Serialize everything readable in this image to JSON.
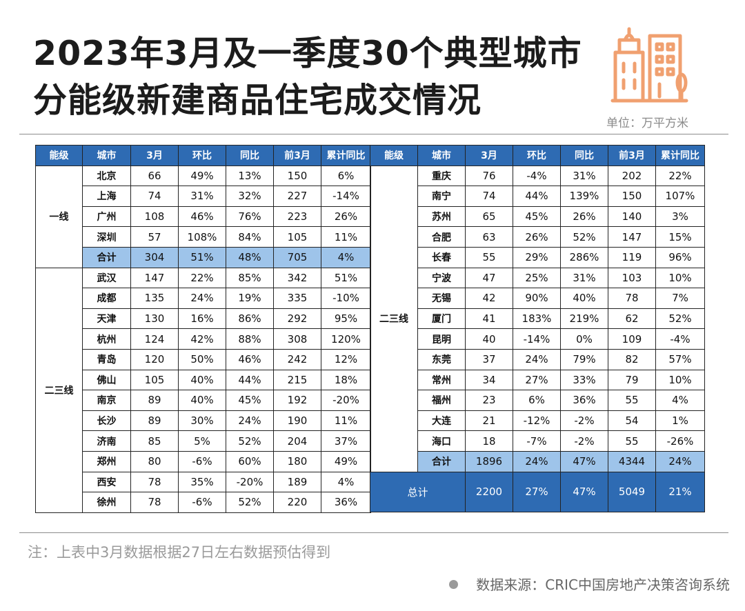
{
  "title": "2023年3月及一季度30个典型城市分能级新建商品住宅成交情况",
  "unit": "单位：万平方米",
  "headers": [
    "能级",
    "城市",
    "3月",
    "环比",
    "同比",
    "前3月",
    "累计同比"
  ],
  "left_table": {
    "tier_first": "一线",
    "tier_second": "二三线",
    "first_tier_rows": [
      {
        "city": "北京",
        "march": "66",
        "mom": "49%",
        "yoy": "13%",
        "q1": "150",
        "q1_yoy": "6%"
      },
      {
        "city": "上海",
        "march": "74",
        "mom": "31%",
        "yoy": "32%",
        "q1": "227",
        "q1_yoy": "-14%"
      },
      {
        "city": "广州",
        "march": "108",
        "mom": "46%",
        "yoy": "76%",
        "q1": "223",
        "q1_yoy": "26%"
      },
      {
        "city": "深圳",
        "march": "57",
        "mom": "108%",
        "yoy": "84%",
        "q1": "105",
        "q1_yoy": "11%"
      }
    ],
    "first_tier_sum": {
      "city": "合计",
      "march": "304",
      "mom": "51%",
      "yoy": "48%",
      "q1": "705",
      "q1_yoy": "4%"
    },
    "second_tier_rows": [
      {
        "city": "武汉",
        "march": "147",
        "mom": "22%",
        "yoy": "85%",
        "q1": "342",
        "q1_yoy": "51%"
      },
      {
        "city": "成都",
        "march": "135",
        "mom": "24%",
        "yoy": "19%",
        "q1": "335",
        "q1_yoy": "-10%"
      },
      {
        "city": "天津",
        "march": "130",
        "mom": "16%",
        "yoy": "86%",
        "q1": "292",
        "q1_yoy": "95%"
      },
      {
        "city": "杭州",
        "march": "124",
        "mom": "42%",
        "yoy": "88%",
        "q1": "308",
        "q1_yoy": "120%"
      },
      {
        "city": "青岛",
        "march": "120",
        "mom": "50%",
        "yoy": "46%",
        "q1": "242",
        "q1_yoy": "12%"
      },
      {
        "city": "佛山",
        "march": "105",
        "mom": "40%",
        "yoy": "44%",
        "q1": "215",
        "q1_yoy": "18%"
      },
      {
        "city": "南京",
        "march": "89",
        "mom": "40%",
        "yoy": "45%",
        "q1": "192",
        "q1_yoy": "-20%"
      },
      {
        "city": "长沙",
        "march": "89",
        "mom": "30%",
        "yoy": "24%",
        "q1": "190",
        "q1_yoy": "11%"
      },
      {
        "city": "济南",
        "march": "85",
        "mom": "5%",
        "yoy": "52%",
        "q1": "204",
        "q1_yoy": "37%"
      },
      {
        "city": "郑州",
        "march": "80",
        "mom": "-6%",
        "yoy": "60%",
        "q1": "180",
        "q1_yoy": "49%"
      },
      {
        "city": "西安",
        "march": "78",
        "mom": "35%",
        "yoy": "-20%",
        "q1": "189",
        "q1_yoy": "4%"
      },
      {
        "city": "徐州",
        "march": "78",
        "mom": "-6%",
        "yoy": "52%",
        "q1": "220",
        "q1_yoy": "36%"
      }
    ]
  },
  "right_table": {
    "tier": "二三线",
    "rows": [
      {
        "city": "重庆",
        "march": "76",
        "mom": "-4%",
        "yoy": "31%",
        "q1": "202",
        "q1_yoy": "22%"
      },
      {
        "city": "南宁",
        "march": "74",
        "mom": "44%",
        "yoy": "139%",
        "q1": "150",
        "q1_yoy": "107%"
      },
      {
        "city": "苏州",
        "march": "65",
        "mom": "45%",
        "yoy": "26%",
        "q1": "140",
        "q1_yoy": "3%"
      },
      {
        "city": "合肥",
        "march": "63",
        "mom": "26%",
        "yoy": "52%",
        "q1": "147",
        "q1_yoy": "15%"
      },
      {
        "city": "长春",
        "march": "55",
        "mom": "29%",
        "yoy": "286%",
        "q1": "119",
        "q1_yoy": "96%"
      },
      {
        "city": "宁波",
        "march": "47",
        "mom": "25%",
        "yoy": "31%",
        "q1": "103",
        "q1_yoy": "10%"
      },
      {
        "city": "无锡",
        "march": "42",
        "mom": "90%",
        "yoy": "40%",
        "q1": "78",
        "q1_yoy": "7%"
      },
      {
        "city": "厦门",
        "march": "41",
        "mom": "183%",
        "yoy": "219%",
        "q1": "62",
        "q1_yoy": "52%"
      },
      {
        "city": "昆明",
        "march": "40",
        "mom": "-14%",
        "yoy": "0%",
        "q1": "109",
        "q1_yoy": "-4%"
      },
      {
        "city": "东莞",
        "march": "37",
        "mom": "24%",
        "yoy": "79%",
        "q1": "82",
        "q1_yoy": "57%"
      },
      {
        "city": "常州",
        "march": "34",
        "mom": "27%",
        "yoy": "33%",
        "q1": "79",
        "q1_yoy": "10%"
      },
      {
        "city": "福州",
        "march": "23",
        "mom": "6%",
        "yoy": "36%",
        "q1": "55",
        "q1_yoy": "4%"
      },
      {
        "city": "大连",
        "march": "21",
        "mom": "-12%",
        "yoy": "-2%",
        "q1": "54",
        "q1_yoy": "1%"
      },
      {
        "city": "海口",
        "march": "18",
        "mom": "-7%",
        "yoy": "-2%",
        "q1": "55",
        "q1_yoy": "-26%"
      }
    ],
    "sum": {
      "city": "合计",
      "march": "1896",
      "mom": "24%",
      "yoy": "47%",
      "q1": "4344",
      "q1_yoy": "24%"
    },
    "total": {
      "label": "总计",
      "march": "2200",
      "mom": "27%",
      "yoy": "47%",
      "q1": "5049",
      "q1_yoy": "21%"
    }
  },
  "note": "注：上表中3月数据根据27日左右数据预估得到",
  "source": "数据来源：CRIC中国房地产决策咨询系统",
  "colors": {
    "header_blue": "#2e6bb3",
    "sum_blue": "#9ec4ea",
    "logo_orange": "#f0a070"
  },
  "logo_icon": "buildings-icon"
}
